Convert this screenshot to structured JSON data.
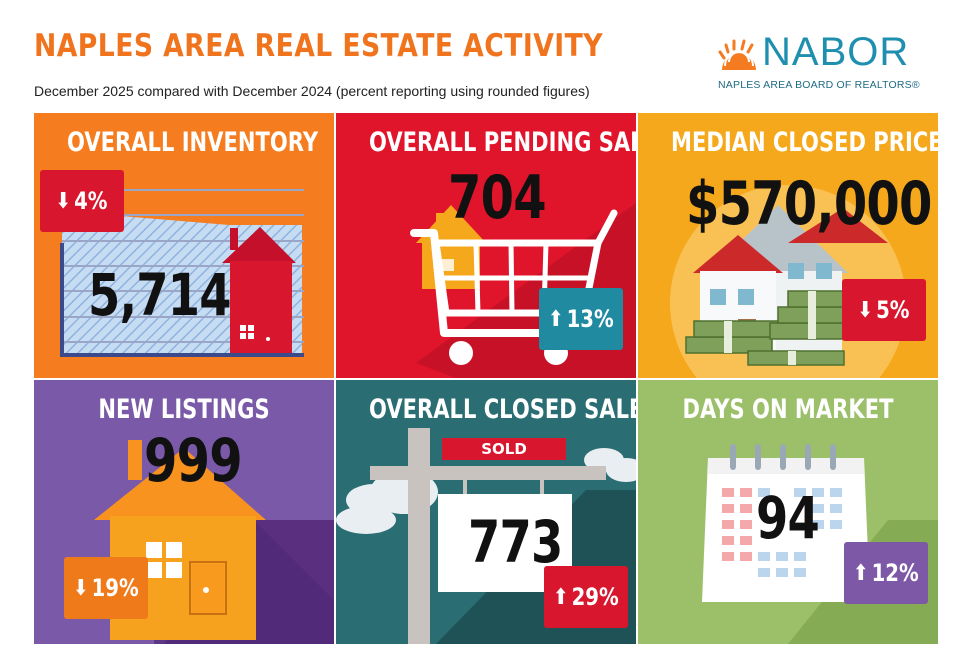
{
  "header": {
    "title": "NAPLES AREA REAL ESTATE ACTIVITY",
    "subtitle": "December 2025 compared with December 2024 (percent reporting using rounded figures)"
  },
  "logo": {
    "name": "NABOR",
    "tagline": "NAPLES AREA BOARD OF REALTORS®"
  },
  "colors": {
    "title": "#f0741e",
    "inventory_bg": "#f57c1f",
    "pending_bg": "#e0142a",
    "median_bg": "#f6a81c",
    "new_listings_bg": "#7a5aa8",
    "closed_bg": "#2a6d73",
    "dom_bg": "#9cc06a",
    "badge_red": "#d8162d",
    "badge_teal": "#1f8aa0",
    "badge_orange": "#ef7a1a",
    "badge_purple": "#7d58a6"
  },
  "panels": [
    {
      "title": "OVERALL INVENTORY",
      "value": "5,714",
      "arrow": "down-arrow-icon",
      "change": "4%"
    },
    {
      "title": "OVERALL PENDING SALES",
      "value": "704",
      "arrow": "up-arrow-icon",
      "change": "13%"
    },
    {
      "title": "MEDIAN CLOSED PRICE",
      "value": "$570,000",
      "arrow": "down-arrow-icon",
      "change": "5%"
    },
    {
      "title": "NEW LISTINGS",
      "value": "999",
      "arrow": "down-arrow-icon",
      "change": "19%"
    },
    {
      "title": "OVERALL CLOSED SALES",
      "value": "773",
      "arrow": "up-arrow-icon",
      "change": "29%",
      "sign": "SOLD"
    },
    {
      "title": "DAYS ON MARKET",
      "value": "94",
      "arrow": "up-arrow-icon",
      "change": "12%"
    }
  ]
}
